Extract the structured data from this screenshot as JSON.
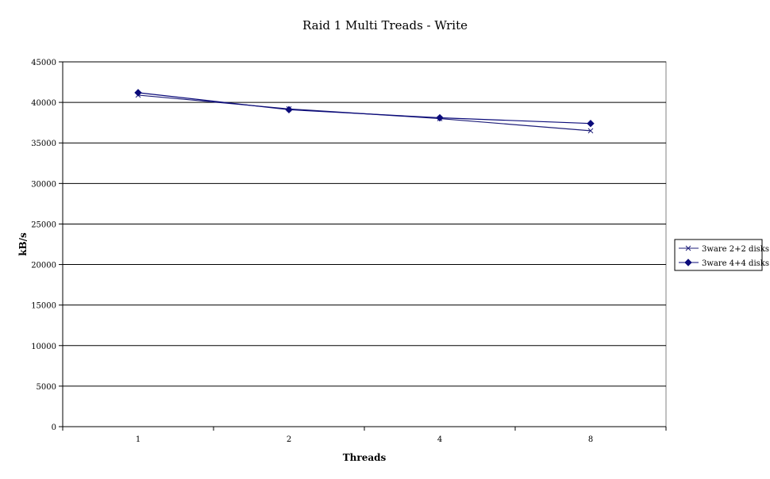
{
  "chart_data": {
    "type": "line",
    "title": "Raid 1 Multi Treads - Write",
    "xlabel": "Threads",
    "ylabel": "kB/s",
    "categories": [
      "1",
      "2",
      "4",
      "8"
    ],
    "ylim": [
      0,
      45000
    ],
    "yticks": [
      "0",
      "5000",
      "10000",
      "15000",
      "20000",
      "25000",
      "30000",
      "35000",
      "40000",
      "45000"
    ],
    "grid": true,
    "legend_position": "right",
    "series": [
      {
        "name": "3ware 2+2 disks",
        "marker": "x",
        "color": "#1f1f7a",
        "values": [
          40900,
          39200,
          38000,
          36500
        ]
      },
      {
        "name": "3ware 4+4 disks",
        "marker": "diamond",
        "color": "#0b0b7a",
        "values": [
          41200,
          39100,
          38100,
          37400
        ]
      }
    ]
  }
}
